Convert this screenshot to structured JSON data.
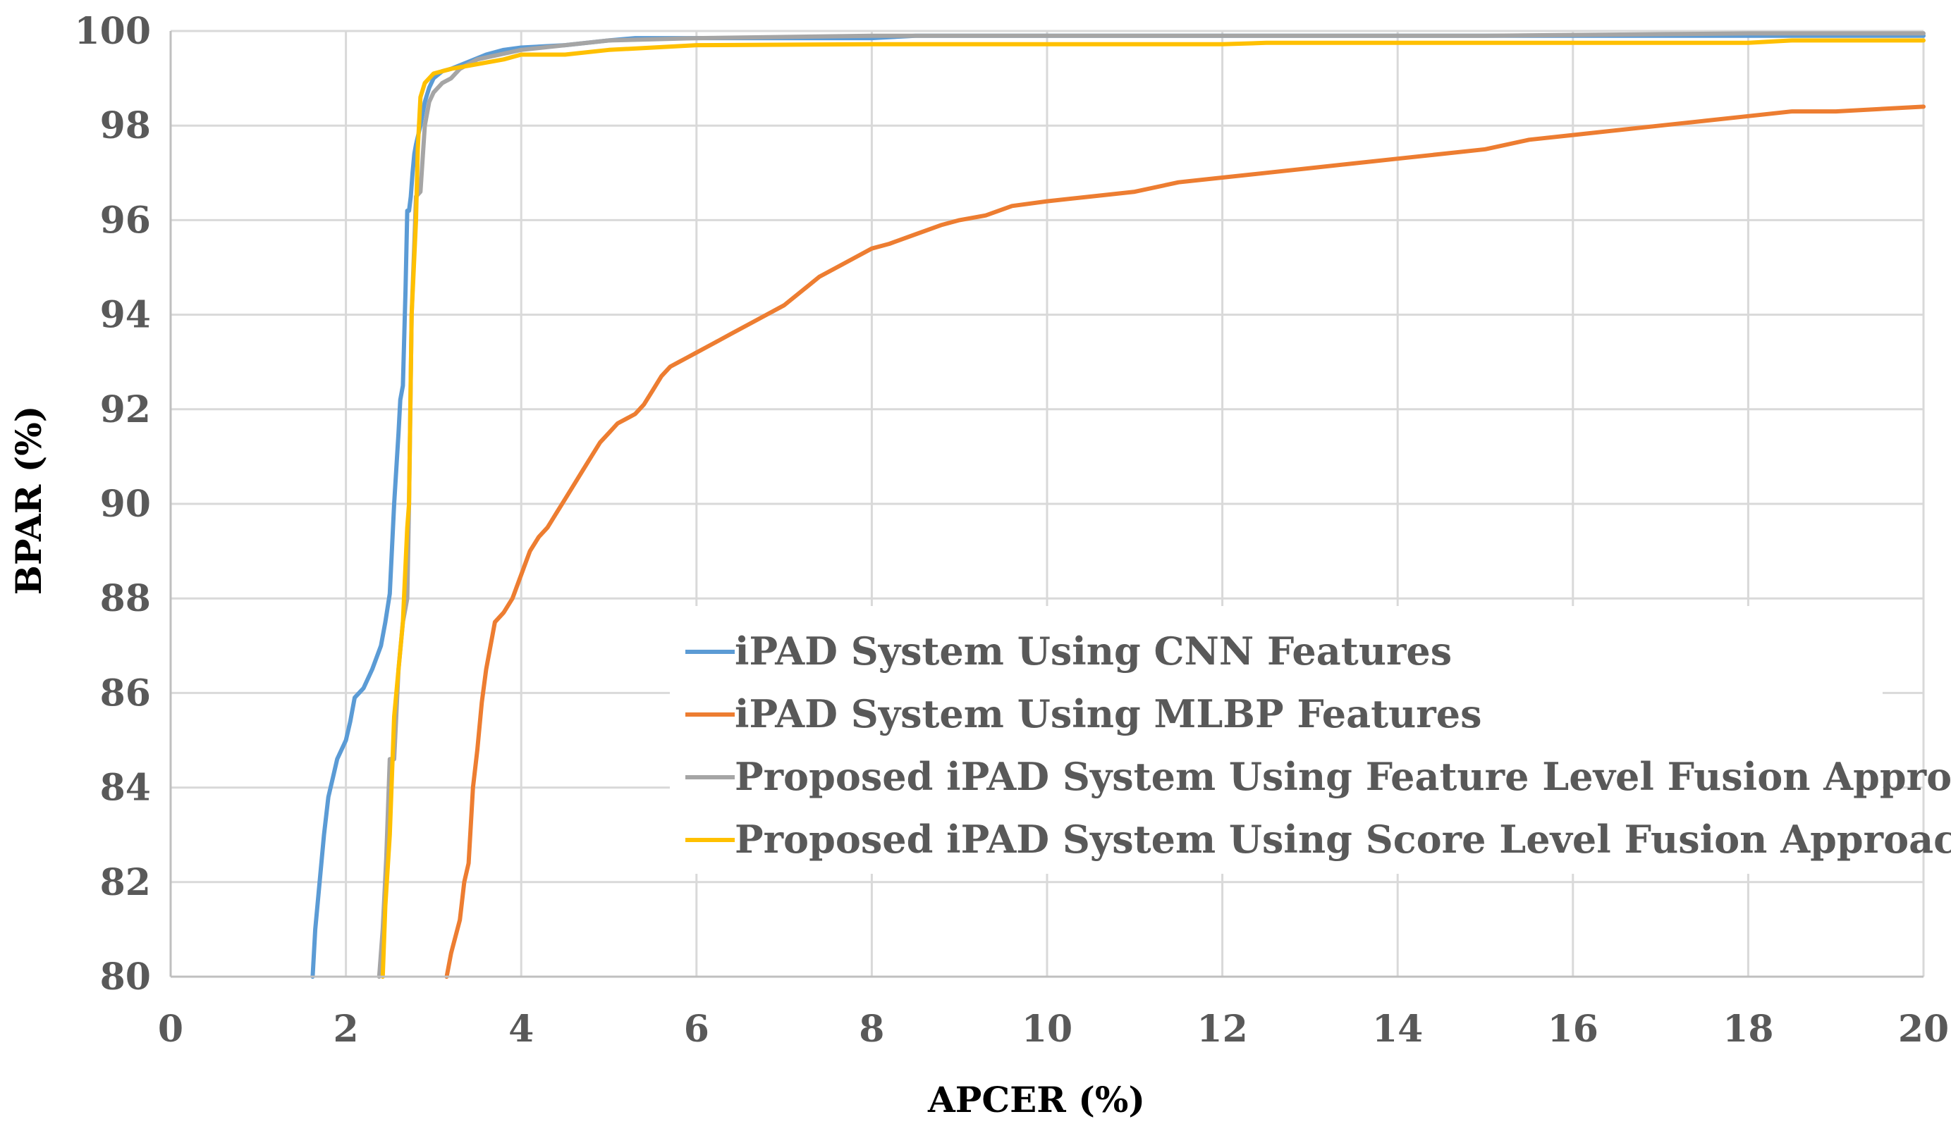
{
  "chart_data": {
    "type": "line",
    "title": "",
    "xlabel": "APCER (%)",
    "ylabel": "BPAR (%)",
    "xlim": [
      0,
      20
    ],
    "ylim": [
      80,
      100
    ],
    "xticks": [
      "0",
      "2",
      "4",
      "6",
      "8",
      "10",
      "12",
      "14",
      "16",
      "18",
      "20"
    ],
    "yticks": [
      "80",
      "82",
      "84",
      "86",
      "88",
      "90",
      "92",
      "94",
      "96",
      "98",
      "100"
    ],
    "grid": true,
    "legend_position": "bottom-right",
    "series": [
      {
        "name": "iPAD System Using CNN Features",
        "color": "#5B9BD5",
        "x": [
          1.62,
          1.65,
          1.7,
          1.75,
          1.8,
          1.85,
          1.9,
          2.0,
          2.05,
          2.1,
          2.15,
          2.2,
          2.3,
          2.4,
          2.45,
          2.5,
          2.55,
          2.6,
          2.62,
          2.65,
          2.68,
          2.7,
          2.72,
          2.74,
          2.76,
          2.78,
          2.8,
          2.85,
          2.9,
          2.95,
          3.0,
          3.1,
          3.2,
          3.4,
          3.6,
          3.8,
          4.0,
          4.5,
          5.0,
          5.3,
          6.0,
          8.0,
          8.5,
          10.0,
          12.0,
          15.0,
          18.0,
          20.0
        ],
        "y": [
          80.0,
          81.0,
          82.0,
          83.0,
          83.8,
          84.2,
          84.6,
          85.0,
          85.4,
          85.9,
          86.0,
          86.1,
          86.5,
          87.0,
          87.5,
          88.1,
          90.0,
          91.5,
          92.2,
          92.5,
          94.5,
          96.2,
          96.2,
          96.5,
          97.0,
          97.4,
          97.6,
          98.0,
          98.5,
          98.8,
          99.0,
          99.15,
          99.2,
          99.35,
          99.5,
          99.6,
          99.65,
          99.7,
          99.8,
          99.85,
          99.85,
          99.85,
          99.9,
          99.9,
          99.9,
          99.9,
          99.9,
          99.9
        ]
      },
      {
        "name": "iPAD System Using MLBP Features",
        "color": "#ED7D31",
        "x": [
          3.15,
          3.2,
          3.3,
          3.35,
          3.4,
          3.45,
          3.5,
          3.55,
          3.6,
          3.65,
          3.7,
          3.8,
          3.9,
          4.0,
          4.1,
          4.2,
          4.3,
          4.4,
          4.5,
          4.6,
          4.7,
          4.8,
          4.9,
          5.0,
          5.1,
          5.2,
          5.3,
          5.4,
          5.5,
          5.6,
          5.7,
          5.8,
          5.9,
          6.0,
          6.1,
          6.2,
          6.4,
          6.6,
          6.8,
          7.0,
          7.2,
          7.4,
          7.6,
          7.8,
          8.0,
          8.2,
          8.5,
          8.8,
          9.0,
          9.3,
          9.6,
          10.0,
          10.5,
          11.0,
          11.5,
          12.0,
          12.5,
          13.0,
          13.5,
          14.0,
          14.5,
          15.0,
          15.5,
          16.0,
          16.5,
          17.0,
          17.5,
          18.0,
          18.5,
          19.0,
          19.5,
          20.0
        ],
        "y": [
          80.0,
          80.5,
          81.2,
          82.0,
          82.4,
          84.0,
          84.8,
          85.8,
          86.5,
          87.0,
          87.5,
          87.7,
          88.0,
          88.5,
          89.0,
          89.3,
          89.5,
          89.8,
          90.1,
          90.4,
          90.7,
          91.0,
          91.3,
          91.5,
          91.7,
          91.8,
          91.9,
          92.1,
          92.4,
          92.7,
          92.9,
          93.0,
          93.1,
          93.2,
          93.3,
          93.4,
          93.6,
          93.8,
          94.0,
          94.2,
          94.5,
          94.8,
          95.0,
          95.2,
          95.4,
          95.5,
          95.7,
          95.9,
          96.0,
          96.1,
          96.3,
          96.4,
          96.5,
          96.6,
          96.8,
          96.9,
          97.0,
          97.1,
          97.2,
          97.3,
          97.4,
          97.5,
          97.7,
          97.8,
          97.9,
          98.0,
          98.1,
          98.2,
          98.3,
          98.3,
          98.35,
          98.4
        ]
      },
      {
        "name": "Proposed iPAD System Using Feature Level Fusion Approach",
        "color": "#A5A5A5",
        "x": [
          2.38,
          2.42,
          2.46,
          2.5,
          2.55,
          2.6,
          2.65,
          2.7,
          2.72,
          2.75,
          2.78,
          2.8,
          2.85,
          2.9,
          2.95,
          3.0,
          3.1,
          3.2,
          3.3,
          3.5,
          4.0,
          4.5,
          5.0,
          6.0,
          8.0,
          10.0,
          12.0,
          15.0,
          18.0,
          20.0
        ],
        "y": [
          80.0,
          81.0,
          82.5,
          84.6,
          84.6,
          86.5,
          87.5,
          88.0,
          90.0,
          94.0,
          95.5,
          96.5,
          96.6,
          98.0,
          98.5,
          98.7,
          98.9,
          99.0,
          99.2,
          99.4,
          99.6,
          99.7,
          99.8,
          99.85,
          99.9,
          99.9,
          99.9,
          99.9,
          99.95,
          99.95
        ]
      },
      {
        "name": "Proposed iPAD System Using Score Level Fusion Approach",
        "color": "#FFC000",
        "x": [
          2.42,
          2.45,
          2.5,
          2.55,
          2.6,
          2.65,
          2.7,
          2.72,
          2.75,
          2.8,
          2.82,
          2.85,
          2.9,
          3.0,
          3.2,
          3.5,
          3.8,
          4.0,
          4.5,
          5.0,
          5.5,
          6.0,
          8.0,
          10.0,
          12.0,
          12.5,
          15.0,
          18.0,
          18.5,
          20.0
        ],
        "y": [
          80.0,
          81.5,
          83.0,
          85.5,
          86.5,
          87.5,
          89.5,
          90.0,
          94.0,
          96.0,
          97.5,
          98.6,
          98.9,
          99.1,
          99.2,
          99.3,
          99.4,
          99.5,
          99.5,
          99.6,
          99.65,
          99.7,
          99.72,
          99.72,
          99.72,
          99.75,
          99.75,
          99.75,
          99.8,
          99.8
        ]
      }
    ]
  }
}
